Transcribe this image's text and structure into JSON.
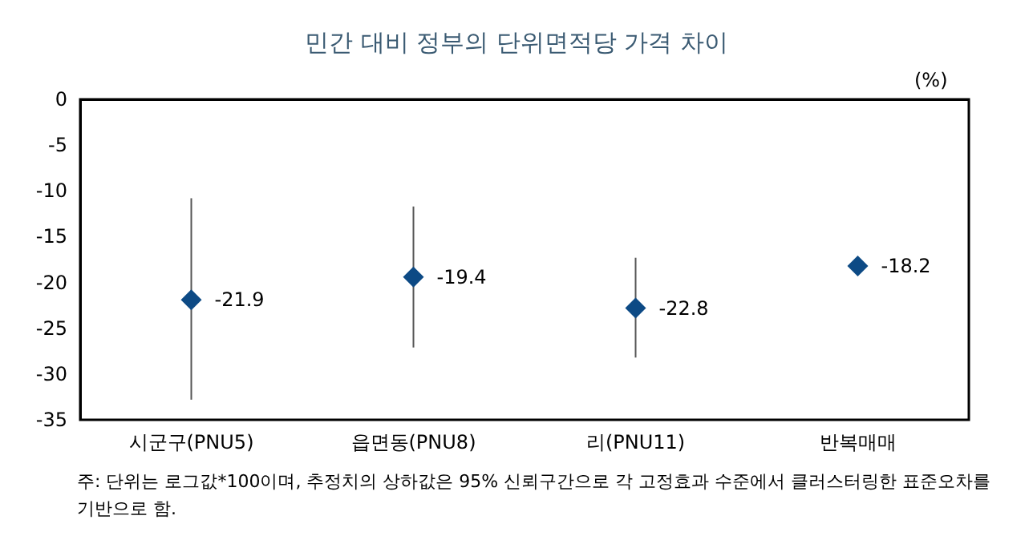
{
  "chart_data": {
    "type": "scatter",
    "title": "민간 대비 정부의 단위면적당 가격 차이",
    "ylabel": "(%)",
    "categories": [
      "시군구(PNU5)",
      "읍면동(PNU8)",
      "리(PNU11)",
      "반복매매"
    ],
    "values": [
      -21.9,
      -19.4,
      -22.8,
      -18.2
    ],
    "errors": [
      [
        -32.8,
        -10.8
      ],
      [
        -27.1,
        -11.7
      ],
      [
        -28.2,
        -17.3
      ],
      null
    ],
    "color": "#0d4a85",
    "marker": "diamond",
    "data_labels": true,
    "ylim": [
      -35,
      0
    ],
    "yticks": [
      0,
      -5,
      -10,
      -15,
      -20,
      -25,
      -30,
      -35
    ],
    "grid": false,
    "annotations": [
      "주: 단위는 로그값*100이며, 추정치의 상하값은 95% 신뢰구간으로 각 고정효과 수준에서 클러스터링한 표준오차를 기반으로 함."
    ]
  }
}
